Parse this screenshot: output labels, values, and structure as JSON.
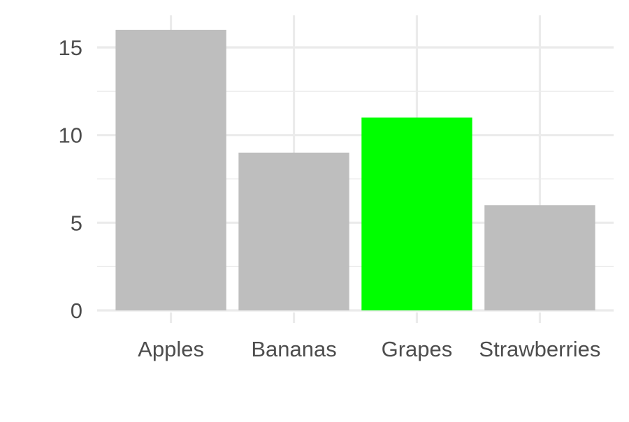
{
  "chart_data": {
    "type": "bar",
    "title": "",
    "xlabel": "",
    "ylabel": "",
    "categories": [
      "Apples",
      "Bananas",
      "Grapes",
      "Strawberries"
    ],
    "values": [
      16,
      9,
      11,
      6
    ],
    "bar_colors": [
      "#bebebe",
      "#bebebe",
      "#00ff00",
      "#bebebe"
    ],
    "ylim": [
      0,
      16
    ],
    "y_ticks": [
      0,
      5,
      10,
      15
    ],
    "y_tick_labels": [
      "0",
      "5",
      "10",
      "15"
    ],
    "grid": true,
    "legend": "none"
  },
  "colors": {
    "background": "#ffffff",
    "grid_major": "#ebebeb",
    "tick_text": "#4d4d4d",
    "highlight_bar": "#00ff00",
    "default_bar": "#bebebe"
  }
}
